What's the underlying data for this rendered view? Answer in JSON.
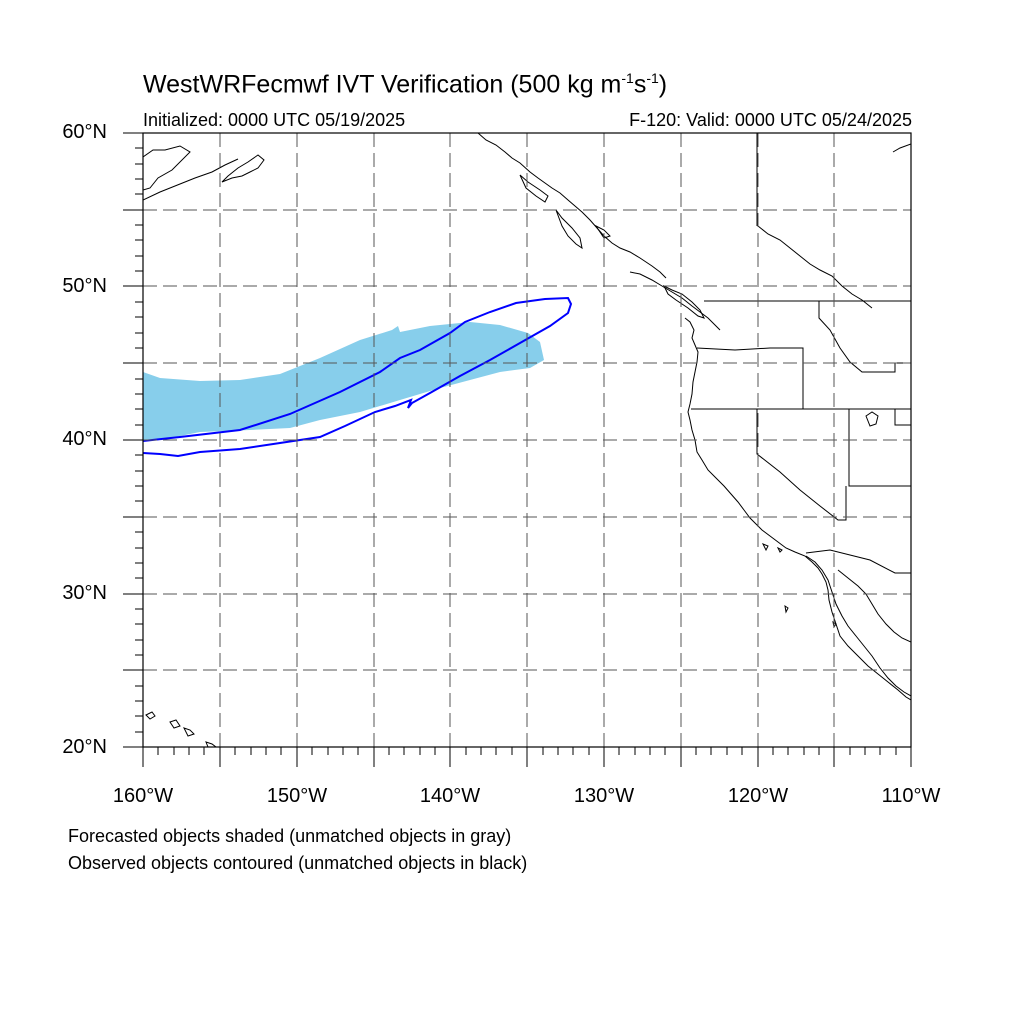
{
  "title": {
    "prefix": "WestWRFecmwf IVT Verification (500 kg m",
    "exp1": "-1",
    "mid": "s",
    "exp2": "-1",
    "suffix": ")"
  },
  "subtitle_left": "Initialized: 0000 UTC 05/19/2025",
  "subtitle_right": "F-120: Valid: 0000 UTC 05/24/2025",
  "map": {
    "lon_range": [
      -160,
      -110
    ],
    "lat_range": [
      20,
      60
    ],
    "lat_labels": [
      "60°N",
      "50°N",
      "40°N",
      "30°N",
      "20°N"
    ],
    "lon_labels": [
      "160°W",
      "150°W",
      "140°W",
      "130°W",
      "120°W",
      "110°W"
    ],
    "gridlines": "dashed",
    "grid_spacing_deg": 5,
    "forecast_object_color": "#87ceeb",
    "observed_object_color": "#0000ff",
    "coastline_color": "#000000"
  },
  "legend": {
    "line1": "Forecasted objects shaded (unmatched objects in gray)",
    "line2": "Observed objects contoured (unmatched objects in black)"
  }
}
